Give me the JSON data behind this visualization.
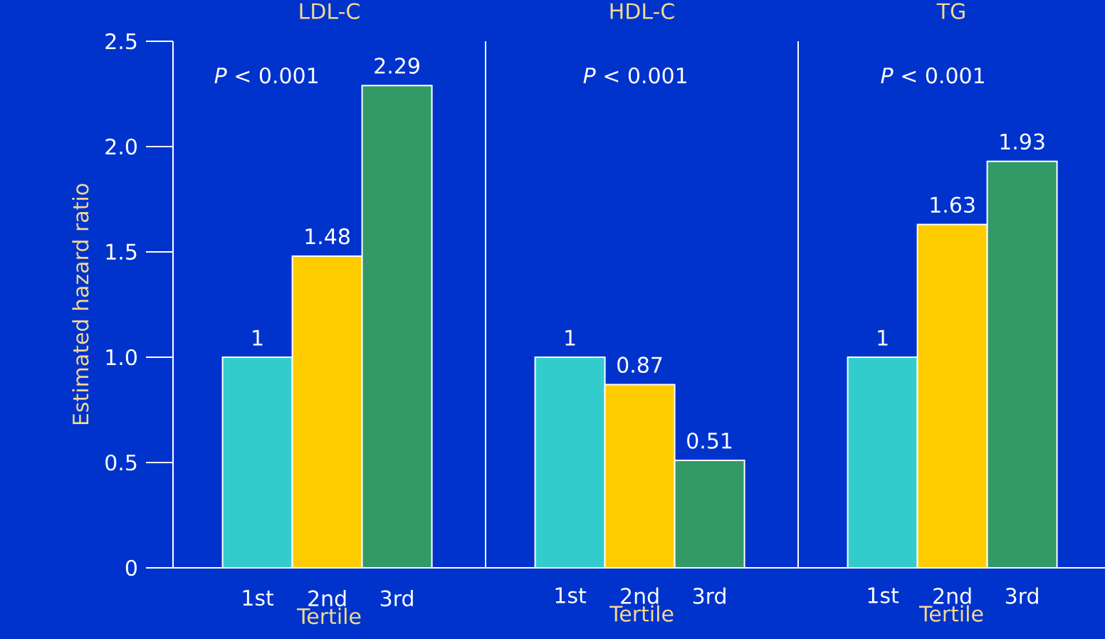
{
  "chart_data": [
    {
      "type": "bar",
      "title": "LDL-C",
      "xlabel": "Tertile",
      "ylabel": "Estimated hazard ratio",
      "categories": [
        "1st",
        "2nd",
        "3rd"
      ],
      "values": [
        1,
        1.48,
        2.29
      ],
      "colors": [
        "#33cccc",
        "#ffcc00",
        "#339966"
      ],
      "ylim": [
        0,
        2.5
      ],
      "yticks": [
        0,
        0.5,
        {
          "value": 1,
          "label": "1.0"
        },
        1.5,
        {
          "value": 2,
          "label": "2.0"
        },
        2.5
      ],
      "data_labels": true,
      "annotations": [
        "*P* < 0.001"
      ]
    },
    {
      "type": "bar",
      "title": "HDL-C",
      "xlabel": "Tertile",
      "categories": [
        "1st",
        "2nd",
        "3rd"
      ],
      "values": [
        1,
        0.87,
        0.51
      ],
      "colors": [
        "#33cccc",
        "#ffcc00",
        "#339966"
      ],
      "ylim": [
        0,
        2.5
      ],
      "tick_labels": "x",
      "data_labels": true,
      "annotations": [
        "*P* < 0.001"
      ]
    },
    {
      "type": "bar",
      "title": "TG",
      "xlabel": "Tertile",
      "categories": [
        "1st",
        "2nd",
        "3rd"
      ],
      "values": [
        1,
        1.63,
        1.93
      ],
      "colors": [
        "#33cccc",
        "#ffcc00",
        "#339966"
      ],
      "ylim": [
        0,
        2.5
      ],
      "tick_labels": "x",
      "data_labels": true,
      "annotations": [
        "*P* < 0.001"
      ]
    }
  ]
}
